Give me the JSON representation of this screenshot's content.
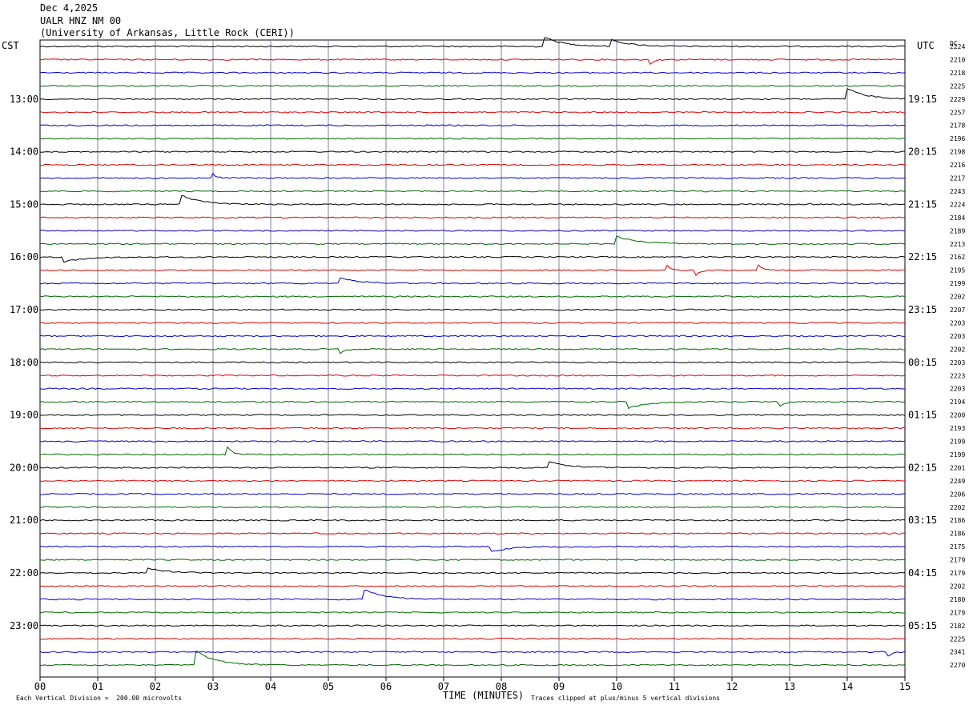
{
  "header": {
    "date": "Dec 4,2025",
    "station": "UALR HNZ NM 00",
    "institution": "(University of Arkansas, Little Rock (CERI))"
  },
  "left_axis_label": "CST",
  "right_axis_label": "UTC",
  "dc_label": "DC",
  "footer": {
    "xlabel": "TIME (MINUTES)",
    "scale_note": "Each Vertical Division =  200.00 microvolts",
    "clip_note": "Traces clipped at plus/minus 5 vertical divisions"
  },
  "colors": {
    "black": "#000000",
    "red": "#dd0000",
    "blue": "#0000cc",
    "green": "#006600",
    "grid": "#8080a0"
  },
  "chart_data": {
    "type": "line",
    "title": "UALR HNZ NM 00",
    "xlabel": "TIME (MINUTES)",
    "x_ticks": [
      "00",
      "01",
      "02",
      "03",
      "04",
      "05",
      "06",
      "07",
      "08",
      "09",
      "10",
      "11",
      "12",
      "13",
      "14",
      "15"
    ],
    "xlim": [
      0,
      15
    ],
    "cst_labels": [
      "13:00",
      "14:00",
      "15:00",
      "16:00",
      "17:00",
      "18:00",
      "19:00",
      "20:00",
      "21:00",
      "22:00",
      "23:00"
    ],
    "utc_labels": [
      "19:15",
      "20:15",
      "21:15",
      "22:15",
      "23:15",
      "00:15",
      "01:15",
      "02:15",
      "03:15",
      "04:15",
      "05:15"
    ],
    "trace_colors": [
      "black",
      "red",
      "blue",
      "green"
    ],
    "dc_values": [
      2224,
      2210,
      2218,
      2225,
      2229,
      2257,
      2178,
      2196,
      2198,
      2216,
      2217,
      2243,
      2224,
      2184,
      2189,
      2213,
      2162,
      2195,
      2199,
      2202,
      2207,
      2203,
      2203,
      2202,
      2203,
      2223,
      2203,
      2194,
      2200,
      2193,
      2199,
      2199,
      2201,
      2249,
      2206,
      2202,
      2186,
      2186,
      2175,
      2179,
      2179,
      2202,
      2180,
      2179,
      2182,
      2225,
      2341,
      2270
    ],
    "events": [
      {
        "row": 0,
        "start": 8.75,
        "amp": 0.7,
        "type": "step"
      },
      {
        "row": 0,
        "start": 9.9,
        "amp": 0.5,
        "type": "step"
      },
      {
        "row": 1,
        "start": 10.55,
        "amp": -0.5,
        "type": "spike"
      },
      {
        "row": 4,
        "start": 14.0,
        "amp": 0.8,
        "type": "step"
      },
      {
        "row": 10,
        "start": 3.0,
        "amp": 0.3,
        "type": "spike"
      },
      {
        "row": 12,
        "start": 2.45,
        "amp": 0.7,
        "type": "step"
      },
      {
        "row": 15,
        "start": 10.0,
        "amp": 0.6,
        "type": "step"
      },
      {
        "row": 16,
        "start": 0.4,
        "amp": -0.4,
        "type": "step"
      },
      {
        "row": 17,
        "start": 10.85,
        "amp": 0.5,
        "type": "spike"
      },
      {
        "row": 17,
        "start": 11.35,
        "amp": -0.6,
        "type": "spike"
      },
      {
        "row": 17,
        "start": 12.45,
        "amp": 0.5,
        "type": "spike"
      },
      {
        "row": 18,
        "start": 5.2,
        "amp": 0.4,
        "type": "step"
      },
      {
        "row": 23,
        "start": 5.2,
        "amp": -0.4,
        "type": "spike"
      },
      {
        "row": 27,
        "start": 10.2,
        "amp": -0.5,
        "type": "step"
      },
      {
        "row": 27,
        "start": 12.8,
        "amp": -0.6,
        "type": "spike"
      },
      {
        "row": 31,
        "start": 3.25,
        "amp": 0.6,
        "type": "spike"
      },
      {
        "row": 32,
        "start": 8.8,
        "amp": 0.5,
        "type": "step"
      },
      {
        "row": 38,
        "start": 7.8,
        "amp": -0.4,
        "type": "step"
      },
      {
        "row": 40,
        "start": 1.85,
        "amp": 0.4,
        "type": "step"
      },
      {
        "row": 42,
        "start": 5.6,
        "amp": 0.8,
        "type": "step"
      },
      {
        "row": 46,
        "start": 14.7,
        "amp": -0.4,
        "type": "spike"
      },
      {
        "row": 47,
        "start": 2.7,
        "amp": 1.1,
        "type": "step"
      }
    ]
  }
}
